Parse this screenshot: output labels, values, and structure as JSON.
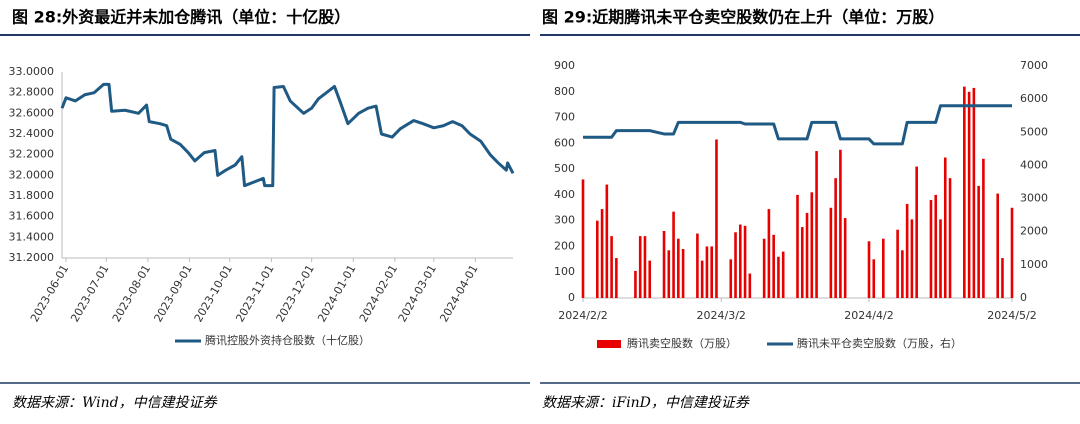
{
  "chart_data": [
    {
      "type": "line",
      "title": "图 28:外资最近并未加仓腾讯（单位：十亿股）",
      "source": "数据来源：Wind，中信建投证券",
      "x": [
        "2023-05-29",
        "2023-06-01",
        "2023-06-08",
        "2023-06-15",
        "2023-06-22",
        "2023-06-29",
        "2023-07-03",
        "2023-07-05",
        "2023-07-15",
        "2023-07-25",
        "2023-07-31",
        "2023-08-02",
        "2023-08-10",
        "2023-08-15",
        "2023-08-18",
        "2023-08-25",
        "2023-08-31",
        "2023-09-05",
        "2023-09-12",
        "2023-09-20",
        "2023-09-22",
        "2023-09-28",
        "2023-10-05",
        "2023-10-10",
        "2023-10-12",
        "2023-10-20",
        "2023-10-26",
        "2023-10-27",
        "2023-11-02",
        "2023-11-03",
        "2023-11-10",
        "2023-11-15",
        "2023-11-20",
        "2023-11-25",
        "2023-12-01",
        "2023-12-06",
        "2023-12-12",
        "2023-12-18",
        "2023-12-22",
        "2023-12-28",
        "2024-01-05",
        "2024-01-12",
        "2024-01-18",
        "2024-01-22",
        "2024-01-30",
        "2024-02-05",
        "2024-02-15",
        "2024-02-22",
        "2024-03-01",
        "2024-03-08",
        "2024-03-15",
        "2024-03-22",
        "2024-03-28",
        "2024-04-05",
        "2024-04-12",
        "2024-04-18",
        "2024-04-24",
        "2024-04-25",
        "2024-04-29"
      ],
      "series": [
        {
          "name": "腾讯控股外资持仓股数（十亿股）",
          "color": "#1f5a85",
          "values": [
            32.65,
            32.75,
            32.72,
            32.78,
            32.8,
            32.88,
            32.88,
            32.62,
            32.63,
            32.6,
            32.68,
            32.52,
            32.5,
            32.48,
            32.35,
            32.3,
            32.22,
            32.14,
            32.22,
            32.24,
            32.0,
            32.05,
            32.1,
            32.18,
            31.9,
            31.94,
            31.97,
            31.9,
            31.9,
            32.85,
            32.86,
            32.72,
            32.66,
            32.6,
            32.65,
            32.74,
            32.8,
            32.86,
            32.72,
            32.5,
            32.6,
            32.65,
            32.67,
            32.4,
            32.37,
            32.45,
            32.53,
            32.5,
            32.46,
            32.48,
            32.52,
            32.48,
            32.4,
            32.33,
            32.2,
            32.12,
            32.05,
            32.12,
            32.02
          ]
        }
      ],
      "xlim": [
        "2023-05-29",
        "2024-04-29"
      ],
      "xticks": [
        "2023-06-01",
        "2023-07-01",
        "2023-08-01",
        "2023-09-01",
        "2023-10-01",
        "2023-11-01",
        "2023-12-01",
        "2024-01-01",
        "2024-02-01",
        "2024-03-01",
        "2024-04-01"
      ],
      "ylim": [
        31.2,
        33.0
      ],
      "yticks": [
        {
          "value": 31.2,
          "label": "31.2000"
        },
        {
          "value": 31.4,
          "label": "31.4000"
        },
        {
          "value": 31.6,
          "label": "31.6000"
        },
        {
          "value": 31.8,
          "label": "31.8000"
        },
        {
          "value": 32.0,
          "label": "32.0000"
        },
        {
          "value": 32.2,
          "label": "32.2000"
        },
        {
          "value": 32.4,
          "label": "32.4000"
        },
        {
          "value": 32.6,
          "label": "32.6000"
        },
        {
          "value": 32.8,
          "label": "32.8000"
        },
        {
          "value": 33.0,
          "label": "33.0000"
        }
      ],
      "grid": false
    },
    {
      "type": "bar",
      "title": "图 29:近期腾讯未平仓卖空股数仍在上升（单位：万股）",
      "source": "数据来源：iFinD，中信建投证券",
      "x": [
        "2024/2/2",
        "2024/2/5",
        "2024/2/6",
        "2024/2/7",
        "2024/2/8",
        "2024/2/9",
        "2024/2/13",
        "2024/2/14",
        "2024/2/15",
        "2024/2/16",
        "2024/2/19",
        "2024/2/20",
        "2024/2/21",
        "2024/2/22",
        "2024/2/23",
        "2024/2/26",
        "2024/2/27",
        "2024/2/28",
        "2024/2/29",
        "2024/3/1",
        "2024/3/4",
        "2024/3/5",
        "2024/3/6",
        "2024/3/7",
        "2024/3/8",
        "2024/3/11",
        "2024/3/12",
        "2024/3/13",
        "2024/3/14",
        "2024/3/15",
        "2024/3/18",
        "2024/3/19",
        "2024/3/20",
        "2024/3/21",
        "2024/3/22",
        "2024/3/25",
        "2024/3/26",
        "2024/3/27",
        "2024/3/28",
        "2024/4/2",
        "2024/4/3",
        "2024/4/5",
        "2024/4/8",
        "2024/4/9",
        "2024/4/10",
        "2024/4/11",
        "2024/4/12",
        "2024/4/15",
        "2024/4/16",
        "2024/4/17",
        "2024/4/18",
        "2024/4/19",
        "2024/4/22",
        "2024/4/23",
        "2024/4/24",
        "2024/4/25",
        "2024/4/26",
        "2024/4/29",
        "2024/4/30",
        "2024/5/2"
      ],
      "series": [
        {
          "name": "腾讯卖空股数（万股）",
          "color": "#e60000",
          "type": "bar",
          "values": [
            460,
            300,
            345,
            440,
            240,
            155,
            105,
            240,
            240,
            145,
            260,
            185,
            335,
            230,
            190,
            250,
            145,
            200,
            200,
            615,
            150,
            255,
            285,
            280,
            95,
            230,
            345,
            245,
            160,
            180,
            400,
            275,
            330,
            410,
            570,
            350,
            465,
            575,
            310,
            220,
            150,
            230,
            265,
            185,
            365,
            305,
            510,
            380,
            400,
            305,
            545,
            465,
            820,
            800,
            815,
            435,
            540,
            405,
            155,
            350
          ]
        },
        {
          "name": "腾讯未平仓卖空股数（万股，右）",
          "color": "#1f5a85",
          "type": "line",
          "axis": "y2",
          "values": [
            4850,
            4850,
            4850,
            4850,
            4850,
            5050,
            5050,
            5050,
            5050,
            5050,
            4950,
            4950,
            4950,
            5300,
            5300,
            5300,
            5300,
            5300,
            5300,
            5300,
            5300,
            5300,
            5300,
            5250,
            5250,
            5250,
            5250,
            5250,
            4800,
            4800,
            4800,
            4800,
            4800,
            5300,
            5300,
            5300,
            5300,
            4800,
            4800,
            4800,
            4650,
            4650,
            4650,
            4650,
            5300,
            5300,
            5300,
            5300,
            5300,
            5800,
            5800,
            5800,
            5800,
            5800,
            5800,
            5800,
            5800,
            5800,
            5800,
            5800
          ]
        }
      ],
      "xlim": [
        "2024/2/2",
        "2024/5/2"
      ],
      "xticks": [
        "2024/2/2",
        "2024/3/2",
        "2024/4/2",
        "2024/5/2"
      ],
      "ylim": [
        0,
        900
      ],
      "yticks": [
        0,
        100,
        200,
        300,
        400,
        500,
        600,
        700,
        800,
        900
      ],
      "y2lim": [
        0,
        7000
      ],
      "y2ticks": [
        0,
        1000,
        2000,
        3000,
        4000,
        5000,
        6000,
        7000
      ],
      "grid": false
    }
  ]
}
